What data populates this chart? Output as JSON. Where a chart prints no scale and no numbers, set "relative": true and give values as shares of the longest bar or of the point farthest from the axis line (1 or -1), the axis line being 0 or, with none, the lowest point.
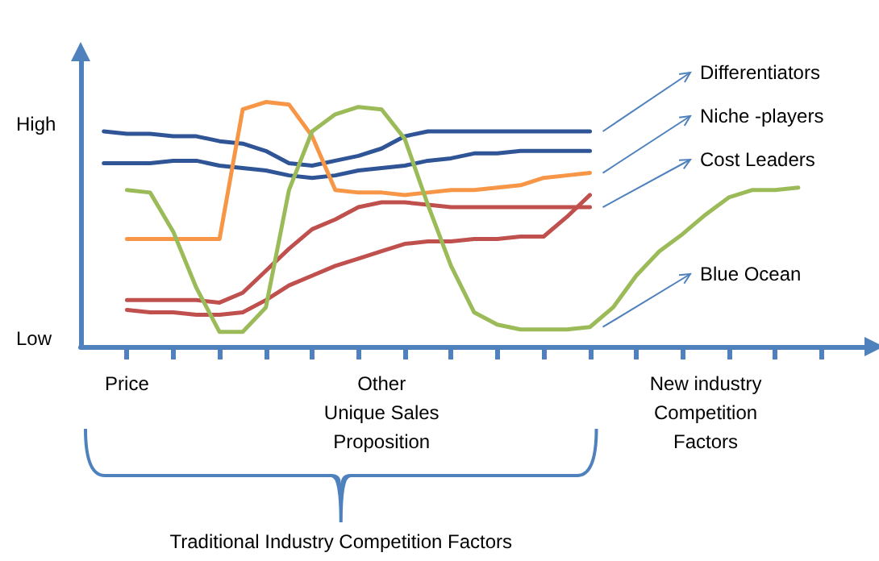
{
  "chart_data": {
    "type": "line",
    "relative": true,
    "categories": [
      null,
      null,
      "Price",
      null,
      null,
      null,
      null,
      null,
      null,
      null,
      null,
      null,
      null,
      "Other\nUnique Sales\nProposition",
      null,
      null,
      null,
      null,
      null,
      null,
      null,
      null,
      null,
      null,
      null,
      null,
      null,
      "New industry\nCompetition\nFactors",
      null,
      null,
      null,
      null,
      null,
      null,
      null
    ],
    "grid": false,
    "legend": false,
    "marker": "none",
    "line_style": "solid",
    "series": [
      {
        "name": "Differentiators",
        "color": "#2f5597",
        "values": [
          null,
          0.88,
          0.87,
          0.87,
          0.86,
          0.86,
          0.84,
          0.83,
          0.8,
          0.75,
          0.74,
          0.76,
          0.78,
          0.81,
          0.86,
          0.88,
          0.88,
          0.88,
          0.88,
          0.88,
          0.88,
          0.88,
          0.88,
          null,
          null,
          null,
          null,
          null,
          null,
          null,
          null,
          null,
          null,
          null,
          null
        ]
      },
      {
        "color": "#2f5597",
        "values": [
          null,
          0.75,
          0.75,
          0.75,
          0.76,
          0.76,
          0.74,
          0.73,
          0.72,
          0.7,
          0.69,
          0.7,
          0.72,
          0.73,
          0.74,
          0.76,
          0.77,
          0.79,
          0.79,
          0.8,
          0.8,
          0.8,
          0.8,
          null,
          null,
          null,
          null,
          null,
          null,
          null,
          null,
          null,
          null,
          null,
          null
        ]
      },
      {
        "name": "Niche -players",
        "color": "#f79646",
        "values": [
          null,
          null,
          0.44,
          0.44,
          0.44,
          0.44,
          0.44,
          0.97,
          1,
          0.99,
          0.86,
          0.64,
          0.63,
          0.63,
          0.62,
          0.63,
          0.64,
          0.64,
          0.65,
          0.66,
          0.69,
          0.7,
          0.71,
          null,
          null,
          null,
          null,
          null,
          null,
          null,
          null,
          null,
          null,
          null,
          null
        ]
      },
      {
        "name": "Cost Leaders",
        "color": "#c0504d",
        "values": [
          null,
          null,
          0.19,
          0.19,
          0.19,
          0.19,
          0.18,
          0.22,
          0.31,
          0.4,
          0.48,
          0.52,
          0.57,
          0.59,
          0.59,
          0.58,
          0.57,
          0.57,
          0.57,
          0.57,
          0.57,
          0.57,
          0.57,
          null,
          null,
          null,
          null,
          null,
          null,
          null,
          null,
          null,
          null,
          null,
          null
        ]
      },
      {
        "color": "#c0504d",
        "values": [
          null,
          null,
          0.15,
          0.14,
          0.14,
          0.13,
          0.13,
          0.14,
          0.19,
          0.25,
          0.29,
          0.33,
          0.36,
          0.39,
          0.42,
          0.43,
          0.43,
          0.44,
          0.44,
          0.45,
          0.45,
          0.53,
          0.62,
          null,
          null,
          null,
          null,
          null,
          null,
          null,
          null,
          null,
          null,
          null,
          null
        ]
      },
      {
        "name": "Blue Ocean",
        "color": "#9bbb59",
        "values": [
          null,
          null,
          0.64,
          0.63,
          0.47,
          0.24,
          0.06,
          0.06,
          0.16,
          0.64,
          0.88,
          0.95,
          0.98,
          0.97,
          0.85,
          0.58,
          0.33,
          0.14,
          0.09,
          0.07,
          0.07,
          0.07,
          0.08,
          0.16,
          0.29,
          0.39,
          0.46,
          0.54,
          0.61,
          0.64,
          0.64,
          0.65,
          null,
          null,
          null
        ]
      }
    ],
    "annotations": [
      "High",
      "Low",
      "Traditional Industry Competition Factors"
    ]
  }
}
